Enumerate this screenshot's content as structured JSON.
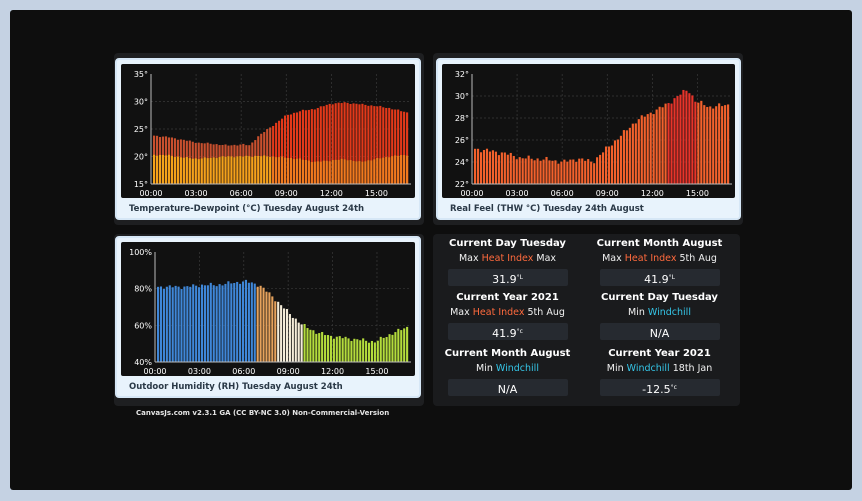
{
  "charts": {
    "temp": {
      "caption": "Temperature-Dewpoint (°C) Tuesday August 24th",
      "y_ticks": [
        "35°",
        "30°",
        "25°",
        "20°",
        "15°"
      ],
      "x_ticks": [
        "00:00",
        "03:00",
        "06:00",
        "09:00",
        "12:00",
        "15:00"
      ]
    },
    "feel": {
      "caption": "Real Feel (THW °C) Tuesday 24th August",
      "y_ticks": [
        "32°",
        "30°",
        "28°",
        "26°",
        "24°",
        "22°"
      ],
      "x_ticks": [
        "00:00",
        "03:00",
        "06:00",
        "09:00",
        "12:00",
        "15:00"
      ]
    },
    "hum": {
      "caption": "Outdoor Humidity (RH) Tuesday August 24th",
      "y_ticks": [
        "100%",
        "80%",
        "60%",
        "40%"
      ],
      "x_ticks": [
        "00:00",
        "03:00",
        "06:00",
        "09:00",
        "12:00",
        "15:00"
      ]
    }
  },
  "chart_data": [
    {
      "type": "bar",
      "title": "Temperature-Dewpoint (°C) Tuesday August 24th",
      "x_range": [
        0,
        17.3
      ],
      "ylim": [
        15,
        35
      ],
      "series": [
        {
          "name": "",
          "x": [
            0,
            1,
            2,
            3,
            4,
            5,
            6,
            6.5,
            7,
            8,
            9,
            10,
            11,
            12,
            13,
            14,
            15,
            16,
            17.2
          ],
          "values": [
            23.8,
            23.5,
            23.0,
            22.5,
            22.3,
            22.0,
            22.2,
            22.0,
            23.5,
            25.5,
            27.5,
            28.3,
            28.7,
            29.6,
            29.8,
            29.5,
            29.2,
            28.8,
            28.0
          ]
        },
        {
          "name": "",
          "x": [
            0,
            1,
            2,
            3,
            4,
            5,
            6,
            7,
            8,
            9,
            10,
            11,
            12,
            13,
            14,
            15,
            16,
            17.2
          ],
          "values": [
            20.3,
            20.2,
            19.8,
            19.6,
            19.8,
            20.0,
            20.0,
            20.1,
            20.0,
            19.8,
            19.5,
            19.0,
            19.3,
            19.5,
            19.0,
            19.5,
            20.0,
            20.3
          ]
        }
      ],
      "grid": true
    },
    {
      "type": "bar",
      "title": "Real Feel (THW °C) Tuesday 24th August",
      "x_range": [
        0,
        17.3
      ],
      "ylim": [
        22,
        32
      ],
      "series": [
        {
          "name": "",
          "x": [
            0,
            1,
            2,
            3,
            4,
            5,
            6,
            7,
            8,
            9,
            10,
            11,
            12,
            13,
            14,
            14.5,
            15,
            16,
            17.2
          ],
          "values": [
            25.2,
            25.0,
            24.8,
            24.4,
            24.3,
            24.2,
            24.0,
            24.3,
            24.0,
            25.3,
            26.5,
            27.8,
            28.5,
            29.2,
            30.2,
            30.6,
            29.5,
            29.0,
            29.2
          ]
        }
      ],
      "grid": true
    },
    {
      "type": "bar",
      "title": "Outdoor Humidity (RH) Tuesday August 24th",
      "x_range": [
        0,
        17.3
      ],
      "ylim": [
        40,
        100
      ],
      "series": [
        {
          "name": "",
          "x": [
            0,
            1,
            2,
            3,
            4,
            5,
            6,
            7,
            8,
            9,
            10,
            11,
            12,
            13,
            14,
            15,
            16,
            17.2
          ],
          "values": [
            81,
            81,
            81,
            82,
            82,
            83,
            84,
            82,
            75,
            67,
            60,
            56,
            54,
            53,
            52,
            51,
            55,
            59
          ]
        }
      ],
      "grid": true
    }
  ],
  "stats": [
    {
      "header": "Current Day Tuesday",
      "pre": "Max",
      "kind": "Heat Index",
      "post": "Max",
      "value": "31.9",
      "unit": "°L"
    },
    {
      "header": "Current Month August",
      "pre": "Max",
      "kind": "Heat Index",
      "post": "5th Aug",
      "value": "41.9",
      "unit": "°L"
    },
    {
      "header": "Current Year 2021",
      "pre": "Max",
      "kind": "Heat Index",
      "post": "5th Aug",
      "value": "41.9",
      "unit": "°c"
    },
    {
      "header": "Current Day Tuesday",
      "pre": "Min",
      "kind": "Windchill",
      "post": "",
      "value": "N/A",
      "unit": ""
    },
    {
      "header": "Current Month August",
      "pre": "Min",
      "kind": "Windchill",
      "post": "",
      "value": "N/A",
      "unit": ""
    },
    {
      "header": "Current Year 2021",
      "pre": "Min",
      "kind": "Windchill",
      "post": "18th Jan",
      "value": "-12.5",
      "unit": "°c"
    }
  ],
  "footer": "CanvasJs.com v2.3.1 GA (CC BY-NC 3.0) Non-Commercial-Version",
  "colors": {
    "temp_top": "#c8502e",
    "temp_top_late": "#e3391a",
    "dew_early": "#f4a21a",
    "dew_late": "#f07a1e",
    "feel_low": "#f3612c",
    "feel_high": "#e8342a",
    "hum_blue": "#3f87d8",
    "hum_orange": "#e6a25c",
    "hum_cream": "#f4ecd8",
    "hum_green": "#b4dc3c",
    "heat_index": "#ff6a3d",
    "windchill": "#35c6e8"
  }
}
